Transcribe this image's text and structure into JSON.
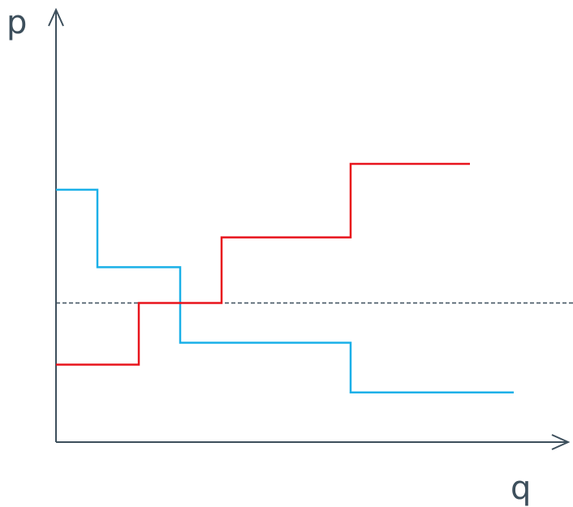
{
  "chart_data": {
    "type": "line",
    "step": true,
    "xlabel": "q",
    "ylabel": "p",
    "xlim": [
      0,
      10
    ],
    "ylim": [
      0,
      10
    ],
    "axis_color": "#3d4f5c",
    "grid": false,
    "tick_labels": false,
    "legend": "none",
    "series": [
      {
        "color": "#1ab0e8",
        "x": [
          0,
          0.85,
          0.85,
          2.55,
          2.55,
          6.05,
          6.05,
          9.4
        ],
        "y": [
          6.35,
          6.35,
          4.4,
          4.4,
          2.5,
          2.5,
          1.25,
          1.25
        ]
      },
      {
        "color": "#e8141c",
        "x": [
          0,
          1.7,
          1.7,
          3.4,
          3.4,
          6.05,
          6.05,
          8.5
        ],
        "y": [
          1.95,
          1.95,
          3.5,
          3.5,
          5.15,
          5.15,
          7.0,
          7.0
        ]
      }
    ],
    "reference_lines": [
      {
        "orientation": "horizontal",
        "y": 3.5,
        "style": "dashed",
        "color": "#3d4f5c"
      }
    ]
  }
}
